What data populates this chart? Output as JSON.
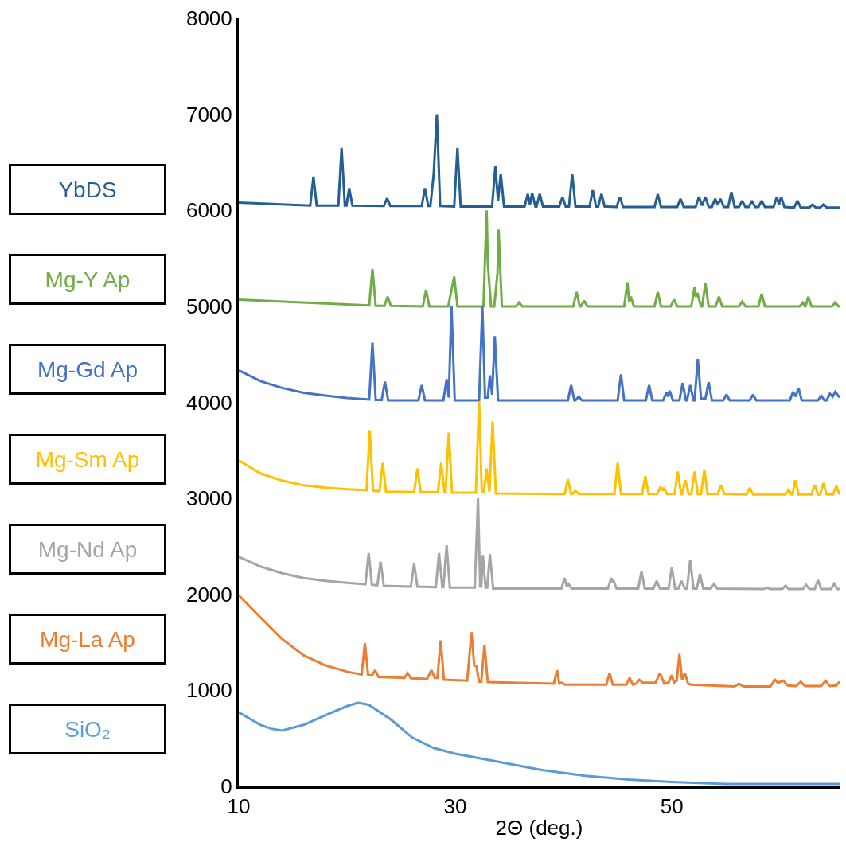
{
  "chart_data": {
    "type": "line",
    "xlabel": "2Θ (deg.)",
    "xlim": [
      10,
      65.5
    ],
    "xticks": [
      10,
      30,
      50
    ],
    "ylim": [
      0,
      8000
    ],
    "yticks": [
      0,
      1000,
      2000,
      3000,
      4000,
      5000,
      6000,
      7000,
      8000
    ],
    "legend": false,
    "series": [
      {
        "name": "YbDS",
        "color": "#255e91",
        "x": [
          10,
          16.6,
          16.9,
          17.2,
          19.2,
          19.5,
          19.8,
          19.95,
          20.2,
          20.5,
          23.4,
          23.7,
          24.0,
          26.9,
          27.2,
          27.5,
          27.7,
          28.0,
          28.3,
          28.6,
          29.9,
          30.2,
          30.5,
          33.4,
          33.7,
          33.95,
          34.2,
          34.5,
          36.4,
          36.7,
          36.9,
          37.1,
          37.4,
          37.5,
          37.8,
          38.1,
          39.6,
          39.9,
          40.2,
          40.5,
          40.8,
          41.1,
          42.4,
          42.7,
          43.0,
          43.2,
          43.5,
          43.8,
          44.9,
          45.2,
          45.5,
          48.4,
          48.7,
          49.0,
          50.5,
          50.8,
          51.1,
          52.2,
          52.5,
          52.8,
          53.1,
          53.4,
          53.7,
          54.0,
          54.25,
          54.5,
          54.8,
          55.2,
          55.5,
          55.8,
          56.2,
          56.5,
          56.8,
          57.1,
          57.4,
          57.7,
          58.0,
          58.3,
          58.6,
          59.4,
          59.7,
          59.9,
          60.1,
          60.4,
          61.3,
          61.6,
          61.9,
          62.7,
          63.0,
          63.3,
          63.7,
          64.0,
          64.3,
          65.5
        ],
        "values": [
          6080,
          6050,
          6350,
          6050,
          6050,
          6650,
          6050,
          6050,
          6230,
          6050,
          6045,
          6125,
          6045,
          6045,
          6230,
          6045,
          6045,
          6370,
          7000,
          6045,
          6040,
          6650,
          6040,
          6040,
          6460,
          6100,
          6380,
          6040,
          6040,
          6170,
          6060,
          6180,
          6040,
          6040,
          6170,
          6040,
          6040,
          6140,
          6040,
          6040,
          6380,
          6040,
          6040,
          6210,
          6040,
          6040,
          6170,
          6040,
          6035,
          6140,
          6035,
          6035,
          6170,
          6035,
          6035,
          6120,
          6035,
          6035,
          6140,
          6050,
          6140,
          6035,
          6035,
          6120,
          6060,
          6120,
          6035,
          6035,
          6190,
          6035,
          6035,
          6100,
          6035,
          6035,
          6100,
          6035,
          6035,
          6100,
          6035,
          6035,
          6140,
          6060,
          6140,
          6035,
          6030,
          6100,
          6030,
          6030,
          6060,
          6030,
          6030,
          6060,
          6030,
          6030
        ]
      },
      {
        "name": "Mg-Y Ap",
        "color": "#70ad47",
        "x": [
          10,
          22.05,
          22.35,
          22.65,
          23.45,
          23.75,
          24.05,
          27.0,
          27.3,
          27.6,
          29.35,
          29.65,
          29.9,
          30.2,
          32.6,
          32.9,
          33.0,
          33.3,
          33.6,
          33.9,
          34.0,
          34.3,
          35.6,
          35.9,
          36.2,
          40.9,
          41.2,
          41.5,
          41.6,
          41.9,
          42.2,
          45.6,
          45.9,
          46.05,
          46.2,
          46.5,
          48.4,
          48.7,
          49.0,
          49.9,
          50.2,
          50.5,
          51.8,
          52.1,
          52.2,
          52.35,
          52.7,
          52.8,
          53.1,
          53.4,
          54.05,
          54.35,
          54.65,
          56.2,
          56.5,
          56.8,
          58.0,
          58.3,
          58.6,
          61.8,
          62.1,
          62.3,
          62.35,
          62.6,
          62.9,
          64.8,
          65.1,
          65.4,
          65.5
        ],
        "values": [
          5070,
          5010,
          5390,
          5005,
          5005,
          5100,
          5005,
          5000,
          5170,
          5000,
          5000,
          5170,
          5310,
          5000,
          5000,
          6000,
          5460,
          5000,
          5000,
          5350,
          5800,
          5000,
          5000,
          5040,
          5000,
          5000,
          5150,
          5000,
          5000,
          5060,
          5000,
          5000,
          5250,
          5050,
          5100,
          5000,
          5000,
          5150,
          5000,
          5000,
          5070,
          5000,
          5000,
          5200,
          5100,
          5140,
          5000,
          5000,
          5240,
          5000,
          5000,
          5100,
          5000,
          5000,
          5050,
          5000,
          5000,
          5130,
          5000,
          5000,
          5040,
          5000,
          5000,
          5100,
          5000,
          5000,
          5040,
          5000,
          5000
        ]
      },
      {
        "name": "Mg-Gd Ap",
        "color": "#4472c4",
        "x": [
          10,
          12,
          14,
          16,
          18,
          20,
          22.05,
          22.35,
          22.65,
          23.2,
          23.5,
          23.8,
          26.6,
          26.9,
          27.2,
          28.9,
          29.2,
          29.4,
          29.65,
          29.95,
          32.2,
          32.5,
          32.75,
          33.0,
          33.2,
          33.4,
          33.65,
          33.95,
          40.4,
          40.7,
          41.0,
          41.1,
          41.4,
          41.7,
          45.0,
          45.3,
          45.6,
          47.6,
          47.9,
          48.2,
          49.2,
          49.5,
          49.65,
          49.8,
          50.1,
          50.7,
          51.0,
          51.3,
          51.4,
          51.7,
          52.0,
          52.1,
          52.4,
          52.7,
          53.1,
          53.4,
          53.7,
          54.75,
          55.05,
          55.35,
          57.2,
          57.5,
          57.8,
          60.9,
          61.2,
          61.45,
          61.7,
          62.0,
          63.5,
          63.8,
          64.1,
          64.3,
          64.6,
          64.85,
          65.1,
          65.5
        ],
        "values": [
          4333,
          4220,
          4150,
          4100,
          4070,
          4045,
          4030,
          4620,
          4025,
          4025,
          4215,
          4020,
          4020,
          4180,
          4020,
          4020,
          4240,
          4050,
          5000,
          4020,
          4020,
          5000,
          4050,
          4050,
          4280,
          4080,
          4690,
          4020,
          4020,
          4180,
          4020,
          4020,
          4060,
          4020,
          4020,
          4290,
          4020,
          4020,
          4180,
          4020,
          4020,
          4100,
          4060,
          4120,
          4020,
          4020,
          4200,
          4020,
          4020,
          4180,
          4020,
          4020,
          4450,
          4040,
          4040,
          4210,
          4020,
          4020,
          4080,
          4020,
          4020,
          4080,
          4020,
          4020,
          4110,
          4060,
          4150,
          4020,
          4020,
          4070,
          4020,
          4020,
          4090,
          4060,
          4110,
          4050
        ]
      },
      {
        "name": "Mg-Sm Ap",
        "color": "#ffc000",
        "x": [
          10,
          12,
          14,
          16,
          18,
          20,
          21.8,
          22.1,
          22.4,
          23.0,
          23.3,
          23.6,
          26.2,
          26.5,
          26.8,
          28.4,
          28.7,
          29.0,
          29.1,
          29.4,
          29.7,
          31.9,
          32.2,
          32.45,
          32.65,
          32.9,
          33.15,
          33.45,
          33.75,
          40.1,
          40.4,
          40.7,
          40.8,
          41.1,
          41.4,
          44.7,
          45.0,
          45.3,
          47.25,
          47.55,
          47.85,
          48.65,
          48.95,
          49.1,
          49.25,
          49.55,
          50.25,
          50.55,
          50.85,
          50.95,
          51.25,
          51.55,
          51.8,
          52.1,
          52.4,
          52.7,
          53.0,
          53.3,
          54.25,
          54.55,
          54.85,
          56.9,
          57.2,
          57.5,
          60.5,
          60.8,
          61.05,
          61.15,
          61.4,
          61.7,
          62.9,
          63.2,
          63.5,
          63.7,
          64.0,
          64.3,
          64.9,
          65.2,
          65.5
        ],
        "values": [
          3395,
          3260,
          3185,
          3135,
          3110,
          3095,
          3085,
          3710,
          3080,
          3075,
          3370,
          3070,
          3065,
          3310,
          3065,
          3065,
          3370,
          3065,
          3065,
          3685,
          3060,
          3060,
          4010,
          3070,
          3070,
          3310,
          3070,
          3800,
          3050,
          3045,
          3200,
          3045,
          3045,
          3080,
          3045,
          3045,
          3370,
          3045,
          3045,
          3230,
          3045,
          3045,
          3120,
          3080,
          3110,
          3045,
          3045,
          3280,
          3045,
          3045,
          3190,
          3045,
          3045,
          3280,
          3045,
          3045,
          3300,
          3045,
          3045,
          3140,
          3045,
          3040,
          3110,
          3040,
          3040,
          3090,
          3040,
          3040,
          3190,
          3040,
          3040,
          3140,
          3040,
          3040,
          3160,
          3040,
          3040,
          3130,
          3040
        ]
      },
      {
        "name": "Mg-Nd Ap",
        "color": "#a5a5a5",
        "x": [
          10,
          12,
          14,
          16,
          18,
          20,
          21.7,
          22.0,
          22.3,
          22.8,
          23.1,
          23.4,
          25.9,
          26.2,
          26.5,
          28.2,
          28.5,
          28.8,
          28.9,
          29.2,
          29.5,
          31.8,
          32.1,
          32.3,
          32.4,
          32.55,
          32.8,
          32.95,
          33.2,
          33.5,
          39.8,
          40.1,
          40.3,
          40.45,
          40.75,
          44.1,
          44.4,
          44.5,
          44.6,
          44.9,
          46.9,
          47.2,
          47.5,
          48.3,
          48.6,
          48.9,
          49.7,
          50.0,
          50.3,
          50.6,
          50.9,
          51.2,
          51.4,
          51.7,
          52.0,
          52.3,
          52.6,
          52.9,
          53.6,
          53.9,
          54.2,
          58.5,
          58.8,
          59.1,
          60.2,
          60.5,
          60.8,
          62.1,
          62.4,
          62.7,
          63.2,
          63.5,
          63.8,
          64.7,
          65.0,
          65.3,
          65.5
        ],
        "values": [
          2390,
          2290,
          2220,
          2170,
          2140,
          2120,
          2105,
          2430,
          2100,
          2095,
          2340,
          2090,
          2080,
          2320,
          2080,
          2075,
          2430,
          2075,
          2075,
          2510,
          2070,
          2070,
          3000,
          2080,
          2080,
          2410,
          2070,
          2070,
          2420,
          2060,
          2060,
          2170,
          2080,
          2110,
          2060,
          2060,
          2170,
          2130,
          2150,
          2060,
          2060,
          2240,
          2060,
          2060,
          2140,
          2060,
          2060,
          2280,
          2060,
          2060,
          2140,
          2060,
          2060,
          2360,
          2060,
          2060,
          2210,
          2060,
          2060,
          2110,
          2060,
          2055,
          2070,
          2055,
          2055,
          2090,
          2055,
          2055,
          2100,
          2055,
          2055,
          2150,
          2055,
          2055,
          2110,
          2055,
          2055
        ]
      },
      {
        "name": "Mg-La Ap",
        "color": "#ed7d31",
        "x": [
          10,
          12,
          14,
          16,
          18,
          20,
          21.35,
          21.65,
          21.95,
          22.3,
          22.6,
          22.9,
          25.3,
          25.6,
          25.9,
          27.4,
          27.8,
          28.1,
          28.35,
          28.65,
          28.95,
          31.1,
          31.5,
          31.75,
          31.95,
          32.2,
          32.4,
          32.7,
          33.0,
          39.1,
          39.4,
          39.6,
          39.8,
          40.1,
          43.95,
          44.25,
          44.55,
          45.8,
          46.1,
          46.4,
          46.7,
          47.0,
          47.3,
          48.5,
          48.9,
          49.3,
          49.7,
          50.0,
          50.2,
          50.45,
          50.7,
          50.95,
          51.2,
          51.5,
          51.8,
          55.8,
          56.2,
          56.6,
          59.1,
          59.5,
          59.8,
          60.3,
          60.7,
          61.5,
          61.9,
          62.3,
          63.8,
          64.2,
          64.6,
          65.2,
          65.5
        ],
        "values": [
          1990,
          1760,
          1535,
          1365,
          1260,
          1195,
          1165,
          1490,
          1160,
          1155,
          1210,
          1140,
          1130,
          1180,
          1125,
          1120,
          1210,
          1130,
          1130,
          1520,
          1110,
          1100,
          1605,
          1260,
          1250,
          1090,
          1090,
          1475,
          1085,
          1070,
          1210,
          1070,
          1080,
          1060,
          1060,
          1180,
          1060,
          1060,
          1130,
          1060,
          1070,
          1110,
          1080,
          1080,
          1180,
          1070,
          1080,
          1160,
          1080,
          1100,
          1380,
          1110,
          1180,
          1070,
          1060,
          1040,
          1070,
          1040,
          1040,
          1110,
          1080,
          1100,
          1050,
          1045,
          1090,
          1045,
          1045,
          1100,
          1045,
          1050,
          1090
        ]
      },
      {
        "name": "SiO₂",
        "color": "#5b9bd5",
        "x": [
          10,
          12,
          13,
          14,
          16,
          18,
          20,
          21,
          22,
          24,
          26,
          28,
          30,
          34,
          38,
          42,
          46,
          50,
          55,
          60,
          65.5
        ],
        "values": [
          770,
          640,
          600,
          580,
          640,
          740,
          835,
          870,
          850,
          700,
          510,
          400,
          340,
          255,
          170,
          110,
          70,
          45,
          25,
          25,
          25
        ]
      }
    ]
  }
}
